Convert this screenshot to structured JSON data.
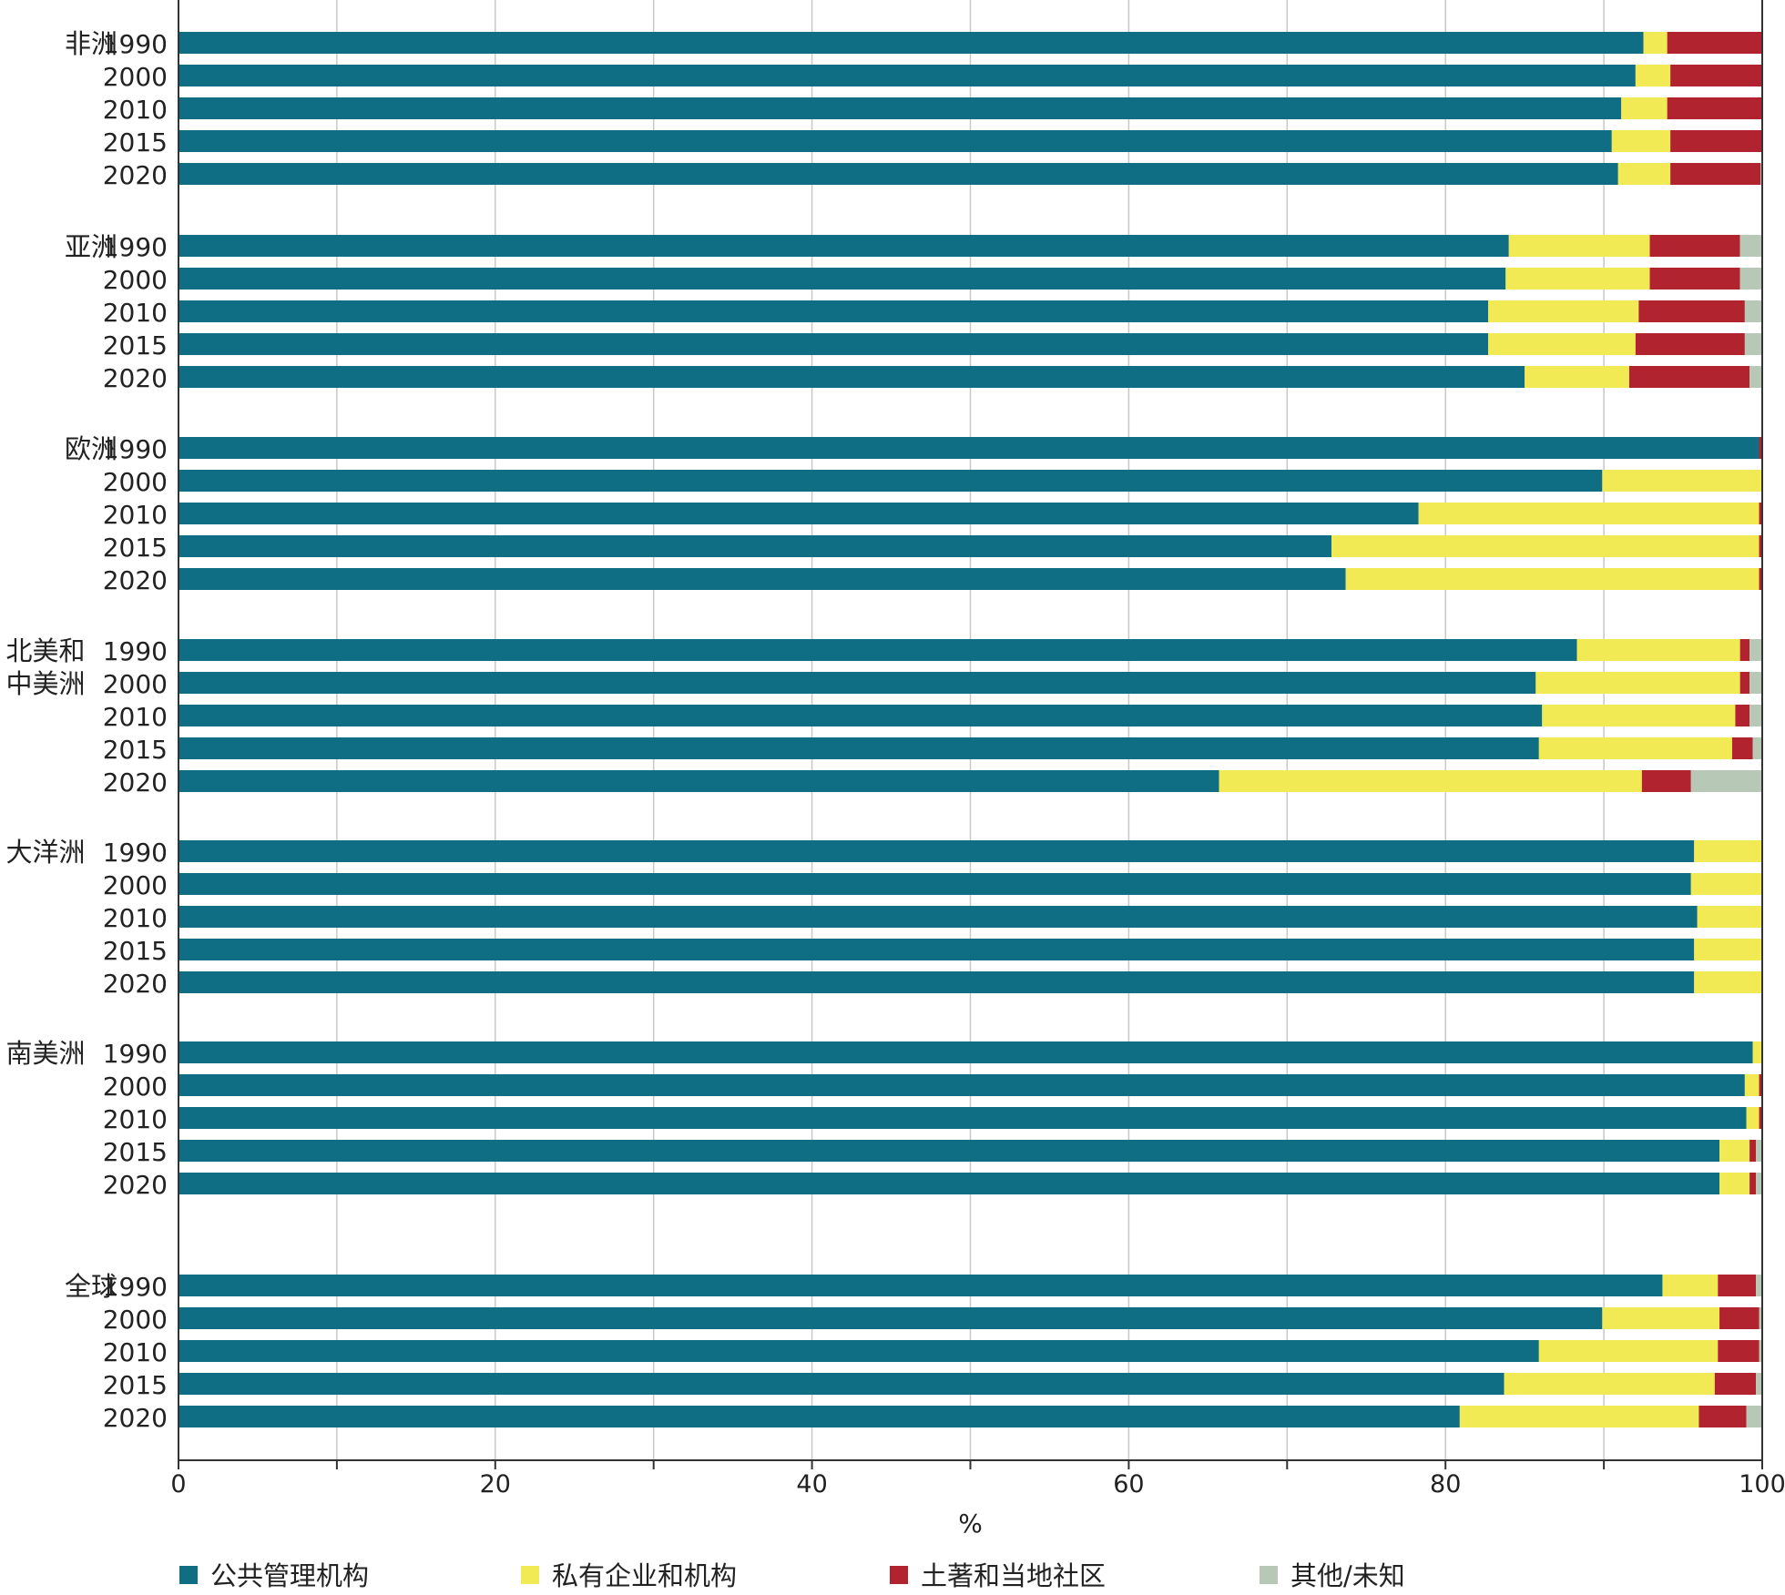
{
  "chart_data": {
    "type": "bar",
    "orientation": "horizontal",
    "stacked": true,
    "xlabel": "%",
    "xlim": [
      0,
      100
    ],
    "xticks": [
      0,
      20,
      40,
      60,
      80,
      100
    ],
    "grid": true,
    "legend_position": "bottom",
    "series": [
      {
        "name": "公共管理机构",
        "color": "#0f6e84"
      },
      {
        "name": "私有企业和机构",
        "color": "#f2ea55"
      },
      {
        "name": "土著和当地社区",
        "color": "#b1232f"
      },
      {
        "name": "其他/未知",
        "color": "#b8c8b6"
      }
    ],
    "groups": [
      {
        "region": "非洲",
        "rows": [
          {
            "year": "1990",
            "values": [
              92.5,
              1.5,
              6.0,
              0
            ]
          },
          {
            "year": "2000",
            "values": [
              92.0,
              2.2,
              5.8,
              0
            ]
          },
          {
            "year": "2010",
            "values": [
              91.1,
              2.9,
              6.0,
              0
            ]
          },
          {
            "year": "2015",
            "values": [
              90.5,
              3.7,
              5.8,
              0
            ]
          },
          {
            "year": "2020",
            "values": [
              90.9,
              3.3,
              5.7,
              0.1
            ]
          }
        ]
      },
      {
        "region": "亚洲",
        "rows": [
          {
            "year": "1990",
            "values": [
              84.0,
              8.9,
              5.7,
              1.4
            ]
          },
          {
            "year": "2000",
            "values": [
              83.8,
              9.1,
              5.7,
              1.4
            ]
          },
          {
            "year": "2010",
            "values": [
              82.7,
              9.5,
              6.7,
              1.1
            ]
          },
          {
            "year": "2015",
            "values": [
              82.7,
              9.3,
              6.9,
              1.1
            ]
          },
          {
            "year": "2020",
            "values": [
              85.0,
              6.6,
              7.6,
              0.8
            ]
          }
        ]
      },
      {
        "region": "欧洲",
        "rows": [
          {
            "year": "1990",
            "values": [
              99.8,
              0,
              0.2,
              0
            ]
          },
          {
            "year": "2000",
            "values": [
              89.9,
              10.1,
              0,
              0
            ]
          },
          {
            "year": "2010",
            "values": [
              78.3,
              21.5,
              0.2,
              0
            ]
          },
          {
            "year": "2015",
            "values": [
              72.8,
              27.0,
              0.2,
              0
            ]
          },
          {
            "year": "2020",
            "values": [
              73.7,
              26.1,
              0.2,
              0
            ]
          }
        ]
      },
      {
        "region": "北美和中美洲",
        "rows": [
          {
            "year": "1990",
            "values": [
              88.3,
              10.3,
              0.6,
              0.8
            ]
          },
          {
            "year": "2000",
            "values": [
              85.7,
              12.9,
              0.6,
              0.8
            ]
          },
          {
            "year": "2010",
            "values": [
              86.1,
              12.2,
              0.9,
              0.8
            ]
          },
          {
            "year": "2015",
            "values": [
              85.9,
              12.2,
              1.3,
              0.6
            ]
          },
          {
            "year": "2020",
            "values": [
              65.7,
              26.7,
              3.1,
              4.5
            ]
          }
        ]
      },
      {
        "region": "大洋洲",
        "rows": [
          {
            "year": "1990",
            "values": [
              95.7,
              4.3,
              0,
              0
            ]
          },
          {
            "year": "2000",
            "values": [
              95.5,
              4.5,
              0,
              0
            ]
          },
          {
            "year": "2010",
            "values": [
              95.9,
              4.1,
              0,
              0
            ]
          },
          {
            "year": "2015",
            "values": [
              95.7,
              4.3,
              0,
              0
            ]
          },
          {
            "year": "2020",
            "values": [
              95.7,
              4.3,
              0,
              0
            ]
          }
        ]
      },
      {
        "region": "南美洲",
        "rows": [
          {
            "year": "1990",
            "values": [
              99.4,
              0.6,
              0,
              0
            ]
          },
          {
            "year": "2000",
            "values": [
              98.9,
              0.9,
              0.2,
              0
            ]
          },
          {
            "year": "2010",
            "values": [
              99.0,
              0.8,
              0.2,
              0
            ]
          },
          {
            "year": "2015",
            "values": [
              97.3,
              1.9,
              0.4,
              0.4
            ]
          },
          {
            "year": "2020",
            "values": [
              97.3,
              1.9,
              0.4,
              0.4
            ]
          }
        ]
      },
      {
        "region": "全球",
        "rows": [
          {
            "year": "1990",
            "values": [
              93.7,
              3.5,
              2.4,
              0.4
            ]
          },
          {
            "year": "2000",
            "values": [
              89.9,
              7.4,
              2.5,
              0.2
            ]
          },
          {
            "year": "2010",
            "values": [
              85.9,
              11.3,
              2.6,
              0.2
            ]
          },
          {
            "year": "2015",
            "values": [
              83.7,
              13.3,
              2.6,
              0.4
            ]
          },
          {
            "year": "2020",
            "values": [
              80.9,
              15.1,
              3.0,
              1.0
            ]
          }
        ]
      }
    ]
  }
}
